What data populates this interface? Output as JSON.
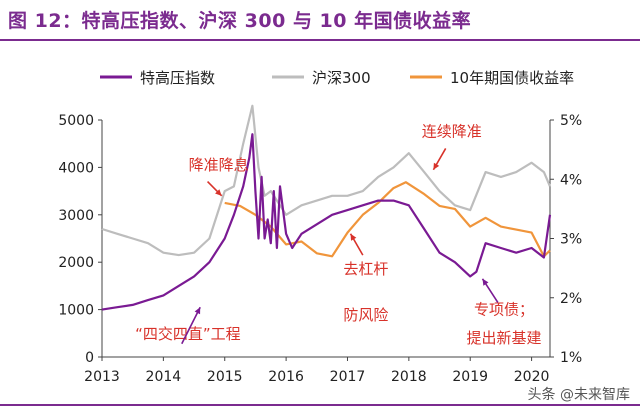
{
  "title": "图 12：特高压指数、沪深 300 与 10 年国债收益率",
  "watermark": "头条 @未来智库",
  "colors": {
    "title": "#7b2b8f",
    "uhv": "#7a1a93",
    "hs300": "#bdbdbd",
    "bond": "#f0953b",
    "annotation": "#d8322a",
    "axis": "#444444"
  },
  "chart_data": {
    "type": "line",
    "title": "",
    "legend": {
      "placement": "top",
      "entries": [
        "特高压指数",
        "沪深300",
        "10年期国债收益率"
      ]
    },
    "x_axis": {
      "label": "",
      "range": [
        2013,
        2020.3
      ],
      "ticks": [
        "2013",
        "2014",
        "2015",
        "2016",
        "2017",
        "2018",
        "2019",
        "2020"
      ]
    },
    "y_axis_left": {
      "label": "",
      "range": [
        0,
        5000
      ],
      "ticks": [
        "0",
        "1000",
        "2000",
        "3000",
        "4000",
        "5000"
      ]
    },
    "y_axis_right": {
      "label": "",
      "range": [
        1,
        5
      ],
      "ticks": [
        "1%",
        "2%",
        "3%",
        "4%",
        "5%"
      ]
    },
    "grid": false,
    "series": [
      {
        "name": "特高压指数",
        "axis": "left",
        "x": [
          2013.0,
          2013.25,
          2013.5,
          2013.75,
          2014.0,
          2014.25,
          2014.5,
          2014.75,
          2015.0,
          2015.15,
          2015.3,
          2015.4,
          2015.45,
          2015.5,
          2015.55,
          2015.6,
          2015.65,
          2015.7,
          2015.75,
          2015.8,
          2015.85,
          2015.9,
          2016.0,
          2016.1,
          2016.25,
          2016.5,
          2016.75,
          2017.0,
          2017.25,
          2017.5,
          2017.75,
          2018.0,
          2018.25,
          2018.5,
          2018.75,
          2019.0,
          2019.1,
          2019.25,
          2019.5,
          2019.75,
          2020.0,
          2020.2,
          2020.3
        ],
        "values": [
          1000,
          1050,
          1100,
          1200,
          1300,
          1500,
          1700,
          2000,
          2500,
          3000,
          3600,
          4200,
          4700,
          3500,
          2500,
          3800,
          2500,
          2900,
          2400,
          3500,
          2300,
          3600,
          2600,
          2300,
          2600,
          2800,
          3000,
          3100,
          3200,
          3300,
          3300,
          3200,
          2700,
          2200,
          2000,
          1700,
          1800,
          2400,
          2300,
          2200,
          2300,
          2100,
          3000
        ]
      },
      {
        "name": "沪深300",
        "axis": "left",
        "x": [
          2013.0,
          2013.25,
          2013.5,
          2013.75,
          2014.0,
          2014.25,
          2014.5,
          2014.75,
          2015.0,
          2015.15,
          2015.3,
          2015.45,
          2015.55,
          2015.65,
          2015.75,
          2016.0,
          2016.25,
          2016.5,
          2016.75,
          2017.0,
          2017.25,
          2017.5,
          2017.75,
          2018.0,
          2018.25,
          2018.5,
          2018.75,
          2019.0,
          2019.25,
          2019.5,
          2019.75,
          2020.0,
          2020.2,
          2020.3
        ],
        "values": [
          2700,
          2600,
          2500,
          2400,
          2200,
          2150,
          2200,
          2500,
          3500,
          3600,
          4500,
          5300,
          4000,
          3400,
          3500,
          3000,
          3200,
          3300,
          3400,
          3400,
          3500,
          3800,
          4000,
          4300,
          3900,
          3500,
          3200,
          3100,
          3900,
          3800,
          3900,
          4100,
          3900,
          3600
        ]
      },
      {
        "name": "10年期国债收益率",
        "axis": "right",
        "x": [
          2015.0,
          2015.25,
          2015.5,
          2015.75,
          2016.0,
          2016.25,
          2016.5,
          2016.75,
          2017.0,
          2017.25,
          2017.5,
          2017.75,
          2017.95,
          2018.25,
          2018.5,
          2018.75,
          2019.0,
          2019.25,
          2019.5,
          2019.75,
          2020.0,
          2020.2,
          2020.3
        ],
        "values": [
          3.6,
          3.55,
          3.4,
          3.2,
          2.9,
          2.95,
          2.75,
          2.7,
          3.1,
          3.4,
          3.6,
          3.85,
          3.95,
          3.75,
          3.55,
          3.5,
          3.2,
          3.35,
          3.2,
          3.15,
          3.1,
          2.7,
          2.8
        ]
      }
    ],
    "annotations": [
      {
        "text": "降准降息",
        "x": 2014.9,
        "y": 3950
      },
      {
        "text": "“四交四直”工程",
        "x": 2014.4,
        "y": 380
      },
      {
        "text": "去杠杆",
        "x": 2017.3,
        "y": 1750
      },
      {
        "text": "防风险",
        "x": 2017.3,
        "y": 780
      },
      {
        "text": "连续降准",
        "x": 2018.7,
        "y": 4650
      },
      {
        "text": "专项债；",
        "x": 2019.55,
        "y": 900
      },
      {
        "text": "提出新基建",
        "x": 2019.55,
        "y": 300
      }
    ]
  }
}
